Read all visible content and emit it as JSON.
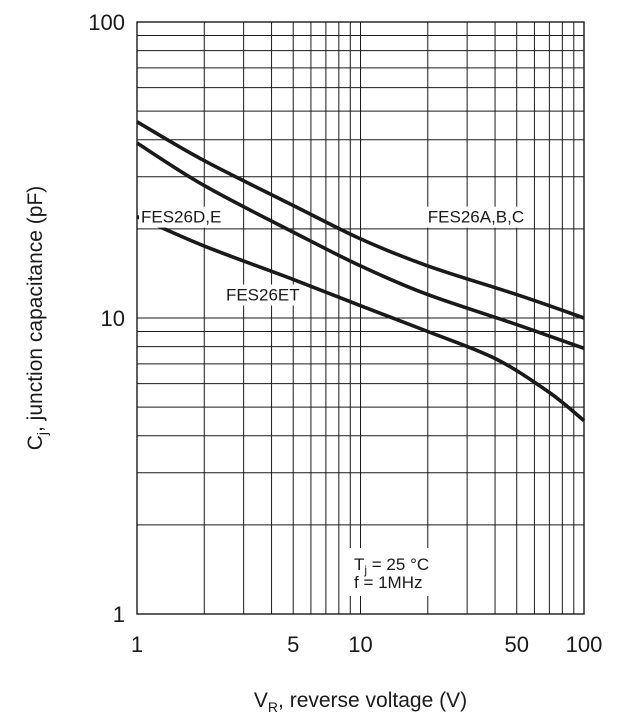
{
  "chart_data": {
    "type": "line",
    "x_scale": "log",
    "y_scale": "log",
    "xlim": [
      1,
      100
    ],
    "ylim": [
      1,
      100
    ],
    "xlabel": {
      "main": "V",
      "sub": "R",
      "rest": ", reverse voltage (V)"
    },
    "ylabel": {
      "main": "C",
      "sub": "j",
      "rest": ", junction capacitance (pF)"
    },
    "x_ticks": [
      {
        "value": 1,
        "label": "1"
      },
      {
        "value": 5,
        "label": "5"
      },
      {
        "value": 10,
        "label": "10"
      },
      {
        "value": 50,
        "label": "50"
      },
      {
        "value": 100,
        "label": "100"
      }
    ],
    "y_ticks": [
      {
        "value": 1,
        "label": "1"
      },
      {
        "value": 10,
        "label": "10"
      },
      {
        "value": 100,
        "label": "100"
      }
    ],
    "grid": true,
    "series": [
      {
        "name": "FES26A,B,C",
        "x": [
          1,
          2,
          5,
          10,
          20,
          50,
          100
        ],
        "y": [
          46,
          34,
          24,
          18.5,
          15,
          12,
          10
        ]
      },
      {
        "name": "FES26D,E",
        "x": [
          1,
          2,
          5,
          10,
          20,
          50,
          100
        ],
        "y": [
          39,
          28,
          19.5,
          15,
          12,
          9.5,
          7.9
        ]
      },
      {
        "name": "FES26ET",
        "x": [
          1,
          2,
          5,
          10,
          20,
          40,
          70,
          100
        ],
        "y": [
          22,
          17.5,
          13.5,
          11,
          9,
          7.3,
          5.6,
          4.5
        ]
      }
    ],
    "series_labels": [
      {
        "text": "FES26A,B,C",
        "x": 20,
        "y": 22
      },
      {
        "text": "FES26D,E",
        "x": 1,
        "y": 22
      },
      {
        "text": "FES26ET",
        "x": 2.5,
        "y": 12
      }
    ],
    "conditions": {
      "line1": {
        "main": "T",
        "sub": "j",
        "rest": " = 25 °C"
      },
      "line2": "f = 1MHz"
    }
  }
}
